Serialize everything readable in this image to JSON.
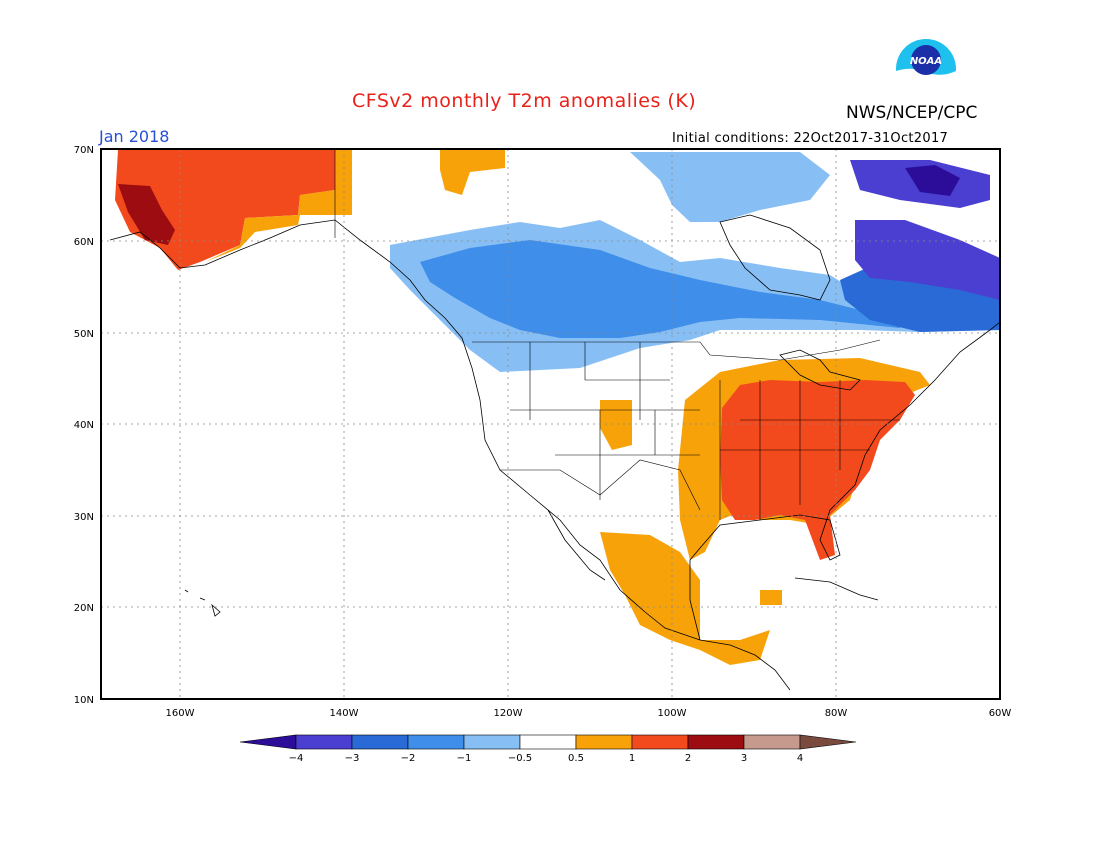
{
  "title": "CFSv2 monthly T2m anomalies (K)",
  "organization": "NWS/NCEP/CPC",
  "logo_text": "NOAA",
  "month": "Jan 2018",
  "initial_conditions": "Initial conditions: 22Oct2017-31Oct2017",
  "axes": {
    "lat_labels": [
      "70N",
      "60N",
      "50N",
      "40N",
      "30N",
      "20N",
      "10N"
    ],
    "lon_labels": [
      "160W",
      "140W",
      "120W",
      "100W",
      "80W",
      "60W"
    ],
    "grid": "dotted"
  },
  "colorbar": {
    "labels": [
      "−4",
      "−3",
      "−2",
      "−1",
      "−0.5",
      "0.5",
      "1",
      "2",
      "3",
      "4"
    ],
    "colors": [
      "#2c0d9a",
      "#4a3fd0",
      "#2a6ad6",
      "#3e8eea",
      "#87bff5",
      "#ffffff",
      "#f8a20a",
      "#f24a1d",
      "#9c0c10",
      "#c69a8c",
      "#7a4a3e"
    ]
  },
  "colors": {
    "strong_warm": "#f24a1d",
    "warm": "#f8a20a",
    "very_warm": "#9c0c10",
    "cool": "#87bff5",
    "cold": "#3e8eea",
    "very_cold": "#2a6ad6",
    "extreme_cold": "#4a3fd0",
    "deep_cold": "#2c0d9a"
  }
}
